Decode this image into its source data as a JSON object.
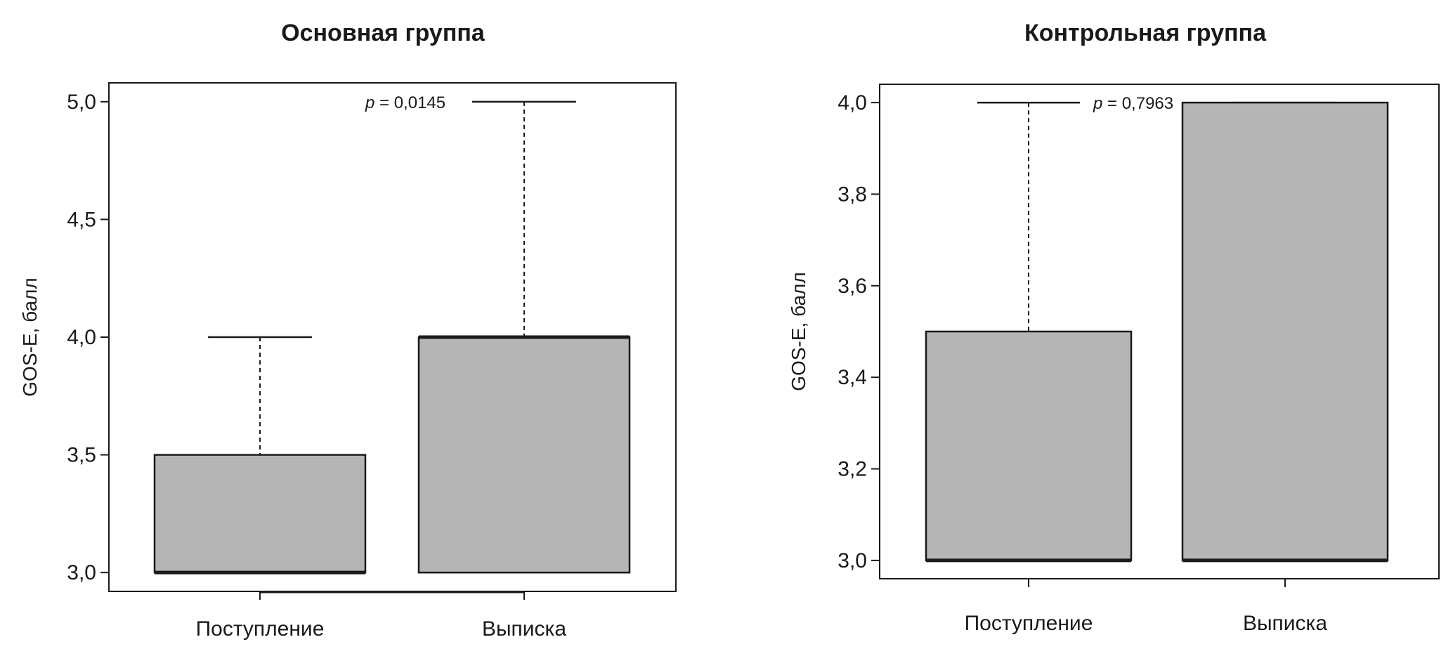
{
  "chart_data": [
    {
      "type": "box",
      "title": "Основная группа",
      "ylabel": "GOS-E, балл",
      "ylim": [
        2.92,
        5.08
      ],
      "yticks": [
        3.0,
        3.5,
        4.0,
        4.5,
        5.0
      ],
      "ytick_labels": [
        "3,0",
        "3,5",
        "4,0",
        "4,5",
        "5,0"
      ],
      "categories": [
        "Поступление",
        "Выписка"
      ],
      "boxes": [
        {
          "category": "Поступление",
          "whisker_low": 3.0,
          "q1": 3.0,
          "median": 3.0,
          "q3": 3.5,
          "whisker_high": 4.0
        },
        {
          "category": "Выписка",
          "whisker_low": 3.0,
          "q1": 3.0,
          "median": 4.0,
          "q3": 4.0,
          "whisker_high": 5.0
        }
      ],
      "annotation": {
        "p_symbol": "p",
        "text": " = 0,0145",
        "y": 5.0
      }
    },
    {
      "type": "box",
      "title": "Контрольная группа",
      "ylabel": "GOS-E, балл",
      "ylim": [
        2.96,
        4.04
      ],
      "yticks": [
        3.0,
        3.2,
        3.4,
        3.6,
        3.8,
        4.0
      ],
      "ytick_labels": [
        "3,0",
        "3,2",
        "3,4",
        "3,6",
        "3,8",
        "4,0"
      ],
      "categories": [
        "Поступление",
        "Выписка"
      ],
      "boxes": [
        {
          "category": "Поступление",
          "whisker_low": 3.0,
          "q1": 3.0,
          "median": 3.0,
          "q3": 3.5,
          "whisker_high": 4.0
        },
        {
          "category": "Выписка",
          "whisker_low": 3.0,
          "q1": 3.0,
          "median": 3.0,
          "q3": 4.0,
          "whisker_high": 4.0
        }
      ],
      "annotation": {
        "p_symbol": "p",
        "text": " = 0,7963",
        "y": 4.0
      }
    }
  ],
  "colors": {
    "box_fill": "#b5b5b5",
    "line": "#1a1a1a"
  }
}
